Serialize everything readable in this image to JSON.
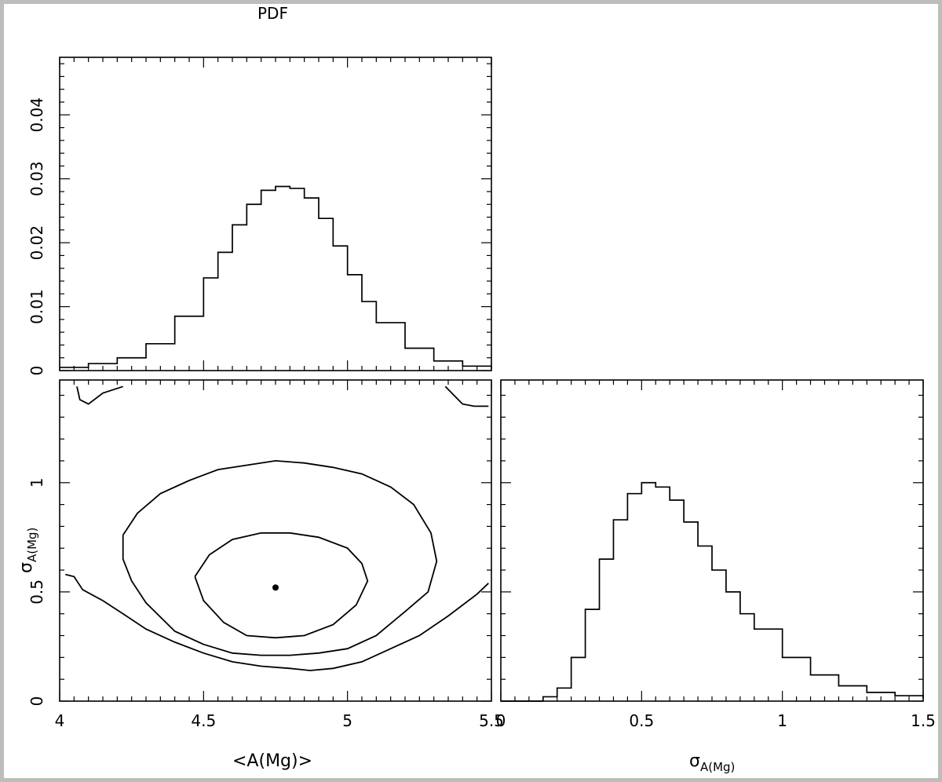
{
  "title": "PDF",
  "chart_data": [
    {
      "type": "histogram",
      "panel": "top-left",
      "xlim": [
        4,
        5.5
      ],
      "ylim": [
        0,
        0.049
      ],
      "yticks": [
        "0",
        "0.01",
        "0.02",
        "0.03",
        "0.04"
      ],
      "xlabel": "",
      "ylabel": "",
      "step_curve": {
        "x": [
          4.0,
          4.1,
          4.2,
          4.3,
          4.4,
          4.5,
          4.55,
          4.6,
          4.65,
          4.7,
          4.75,
          4.8,
          4.85,
          4.9,
          4.95,
          5.0,
          5.05,
          5.1,
          5.2,
          5.3,
          5.4,
          5.5
        ],
        "y": [
          0.0005,
          0.0011,
          0.002,
          0.0042,
          0.0085,
          0.0145,
          0.0185,
          0.0228,
          0.026,
          0.0282,
          0.0288,
          0.0285,
          0.027,
          0.0238,
          0.0195,
          0.015,
          0.0108,
          0.0075,
          0.0035,
          0.0015,
          0.0007,
          0.0003
        ]
      }
    },
    {
      "type": "contour",
      "panel": "bottom-left",
      "xlim": [
        4,
        5.5
      ],
      "ylim": [
        0,
        1.47
      ],
      "xticks": [
        "4",
        "4.5",
        "5",
        "5.5"
      ],
      "yticks": [
        "0",
        "0.5",
        "1"
      ],
      "xlabel": "<A(Mg)>",
      "ylabel_base": "σ",
      "ylabel_sub": "A(Mg)",
      "best_fit": {
        "x": 4.75,
        "y": 0.52
      },
      "contours": [
        {
          "name": "inner",
          "x": [
            4.47,
            4.52,
            4.6,
            4.7,
            4.8,
            4.9,
            5.0,
            5.05,
            5.07,
            5.03,
            4.95,
            4.85,
            4.75,
            4.65,
            4.57,
            4.5,
            4.47
          ],
          "y": [
            0.57,
            0.67,
            0.74,
            0.77,
            0.77,
            0.75,
            0.7,
            0.63,
            0.55,
            0.44,
            0.35,
            0.3,
            0.29,
            0.3,
            0.36,
            0.46,
            0.57
          ]
        },
        {
          "name": "middle",
          "x": [
            4.22,
            4.27,
            4.35,
            4.45,
            4.55,
            4.65,
            4.75,
            4.85,
            4.95,
            5.05,
            5.15,
            5.23,
            5.29,
            5.31,
            5.28,
            5.2,
            5.1,
            5.0,
            4.9,
            4.8,
            4.7,
            4.6,
            4.5,
            4.4,
            4.3,
            4.25,
            4.22,
            4.22
          ],
          "y": [
            0.76,
            0.86,
            0.95,
            1.01,
            1.06,
            1.08,
            1.1,
            1.09,
            1.07,
            1.04,
            0.98,
            0.9,
            0.77,
            0.64,
            0.5,
            0.41,
            0.3,
            0.24,
            0.22,
            0.21,
            0.21,
            0.22,
            0.26,
            0.32,
            0.45,
            0.55,
            0.65,
            0.76
          ]
        },
        {
          "name": "outer-lower",
          "x": [
            4.02,
            4.05,
            4.08,
            4.15,
            4.22,
            4.3,
            4.4,
            4.5,
            4.6,
            4.7,
            4.8,
            4.87,
            4.95,
            5.05,
            5.15,
            5.25,
            5.35,
            5.45,
            5.49
          ],
          "y": [
            0.58,
            0.57,
            0.51,
            0.46,
            0.4,
            0.33,
            0.27,
            0.22,
            0.18,
            0.16,
            0.15,
            0.14,
            0.15,
            0.18,
            0.24,
            0.3,
            0.39,
            0.49,
            0.54
          ]
        },
        {
          "name": "outer-top-left",
          "x": [
            4.06,
            4.07,
            4.1,
            4.15,
            4.22
          ],
          "y": [
            1.44,
            1.38,
            1.36,
            1.41,
            1.44
          ]
        },
        {
          "name": "outer-top-right",
          "x": [
            5.34,
            5.37,
            5.4,
            5.44,
            5.49
          ],
          "y": [
            1.44,
            1.4,
            1.36,
            1.35,
            1.35
          ]
        }
      ]
    },
    {
      "type": "histogram",
      "panel": "bottom-right",
      "xlim": [
        0,
        1.5
      ],
      "ylim": [
        0,
        1.47
      ],
      "xticks": [
        "0",
        "0.5",
        "1",
        "1.5"
      ],
      "yticks": [],
      "xlabel_base": "σ",
      "xlabel_sub": "A(Mg)",
      "step_curve": {
        "x": [
          0.0,
          0.1,
          0.15,
          0.2,
          0.25,
          0.3,
          0.35,
          0.4,
          0.45,
          0.5,
          0.53,
          0.55,
          0.6,
          0.65,
          0.7,
          0.75,
          0.8,
          0.85,
          0.9,
          1.0,
          1.1,
          1.2,
          1.3,
          1.4,
          1.5
        ],
        "y": [
          0.0,
          0.0,
          0.02,
          0.06,
          0.2,
          0.42,
          0.65,
          0.83,
          0.95,
          1.0,
          1.0,
          0.98,
          0.92,
          0.82,
          0.71,
          0.6,
          0.5,
          0.4,
          0.33,
          0.2,
          0.12,
          0.07,
          0.04,
          0.025,
          0.015
        ]
      }
    }
  ]
}
